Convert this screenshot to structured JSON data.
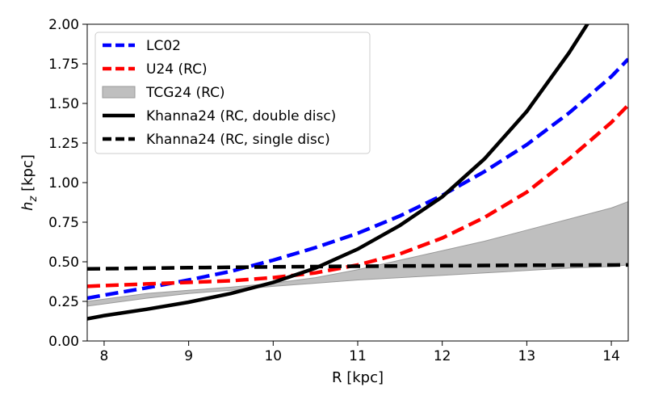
{
  "chart_data": {
    "type": "line",
    "xlabel": "R [kpc]",
    "ylabel_main": "h",
    "ylabel_sub": "z",
    "ylabel_unit": " [kpc]",
    "xlim": [
      7.8,
      14.2
    ],
    "ylim": [
      0.0,
      2.0
    ],
    "xticks": [
      8,
      9,
      10,
      11,
      12,
      13,
      14
    ],
    "yticks": [
      0.0,
      0.25,
      0.5,
      0.75,
      1.0,
      1.25,
      1.5,
      1.75,
      2.0
    ],
    "xtick_labels": [
      "8",
      "9",
      "10",
      "11",
      "12",
      "13",
      "14"
    ],
    "ytick_labels": [
      "0.00",
      "0.25",
      "0.50",
      "0.75",
      "1.00",
      "1.25",
      "1.50",
      "1.75",
      "2.00"
    ],
    "grid": false,
    "legend_position": "top-left",
    "series": [
      {
        "name": "LC02",
        "kind": "line",
        "color": "#0000ff",
        "style": "dashed",
        "x": [
          7.8,
          8.0,
          8.5,
          9.0,
          9.5,
          10.0,
          10.5,
          11.0,
          11.5,
          12.0,
          12.5,
          13.0,
          13.5,
          14.0,
          14.2
        ],
        "y": [
          0.27,
          0.29,
          0.335,
          0.385,
          0.44,
          0.51,
          0.59,
          0.68,
          0.79,
          0.92,
          1.07,
          1.24,
          1.44,
          1.67,
          1.78
        ]
      },
      {
        "name": "U24 (RC)",
        "kind": "line",
        "color": "#ff0000",
        "style": "dashed",
        "x": [
          7.8,
          8.0,
          8.5,
          9.0,
          9.5,
          10.0,
          10.5,
          11.0,
          11.5,
          12.0,
          12.5,
          13.0,
          13.5,
          14.0,
          14.2
        ],
        "y": [
          0.345,
          0.35,
          0.36,
          0.37,
          0.38,
          0.4,
          0.43,
          0.48,
          0.55,
          0.65,
          0.78,
          0.94,
          1.15,
          1.38,
          1.49
        ]
      },
      {
        "name": "TCG24 (RC)",
        "kind": "band",
        "color": "#bfbfbf",
        "x": [
          7.8,
          8.5,
          9.0,
          9.5,
          10.0,
          10.5,
          11.0,
          11.5,
          12.0,
          12.5,
          13.0,
          13.5,
          14.0,
          14.2
        ],
        "y_low": [
          0.22,
          0.27,
          0.3,
          0.32,
          0.345,
          0.365,
          0.385,
          0.4,
          0.415,
          0.43,
          0.445,
          0.46,
          0.47,
          0.48
        ],
        "y_high": [
          0.25,
          0.3,
          0.32,
          0.34,
          0.365,
          0.4,
          0.45,
          0.51,
          0.57,
          0.63,
          0.7,
          0.77,
          0.84,
          0.88
        ]
      },
      {
        "name": "Khanna24 (RC, double disc)",
        "kind": "line",
        "color": "#000000",
        "style": "solid",
        "x": [
          7.8,
          8.0,
          8.5,
          9.0,
          9.5,
          10.0,
          10.5,
          11.0,
          11.5,
          12.0,
          12.5,
          13.0,
          13.5,
          13.8
        ],
        "y": [
          0.14,
          0.16,
          0.2,
          0.245,
          0.3,
          0.37,
          0.46,
          0.58,
          0.73,
          0.91,
          1.15,
          1.45,
          1.82,
          2.07
        ]
      },
      {
        "name": "Khanna24 (RC, single disc)",
        "kind": "line",
        "color": "#000000",
        "style": "dashed",
        "x": [
          7.8,
          9.0,
          10.0,
          11.0,
          12.0,
          13.0,
          14.2
        ],
        "y": [
          0.455,
          0.463,
          0.468,
          0.472,
          0.475,
          0.478,
          0.48
        ]
      }
    ]
  }
}
